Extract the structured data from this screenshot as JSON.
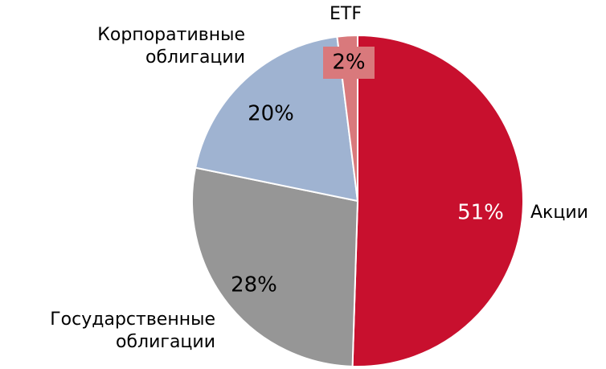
{
  "chart_data": {
    "type": "pie",
    "categories": [
      "Акции",
      "Государственные облигации",
      "Корпоративные облигации",
      "ETF"
    ],
    "values": [
      51,
      28,
      20,
      2
    ],
    "value_labels": [
      "51%",
      "28%",
      "20%",
      "2%"
    ],
    "colors": [
      "#c8102e",
      "#969696",
      "#9fb3d1",
      "#d9797c"
    ]
  }
}
